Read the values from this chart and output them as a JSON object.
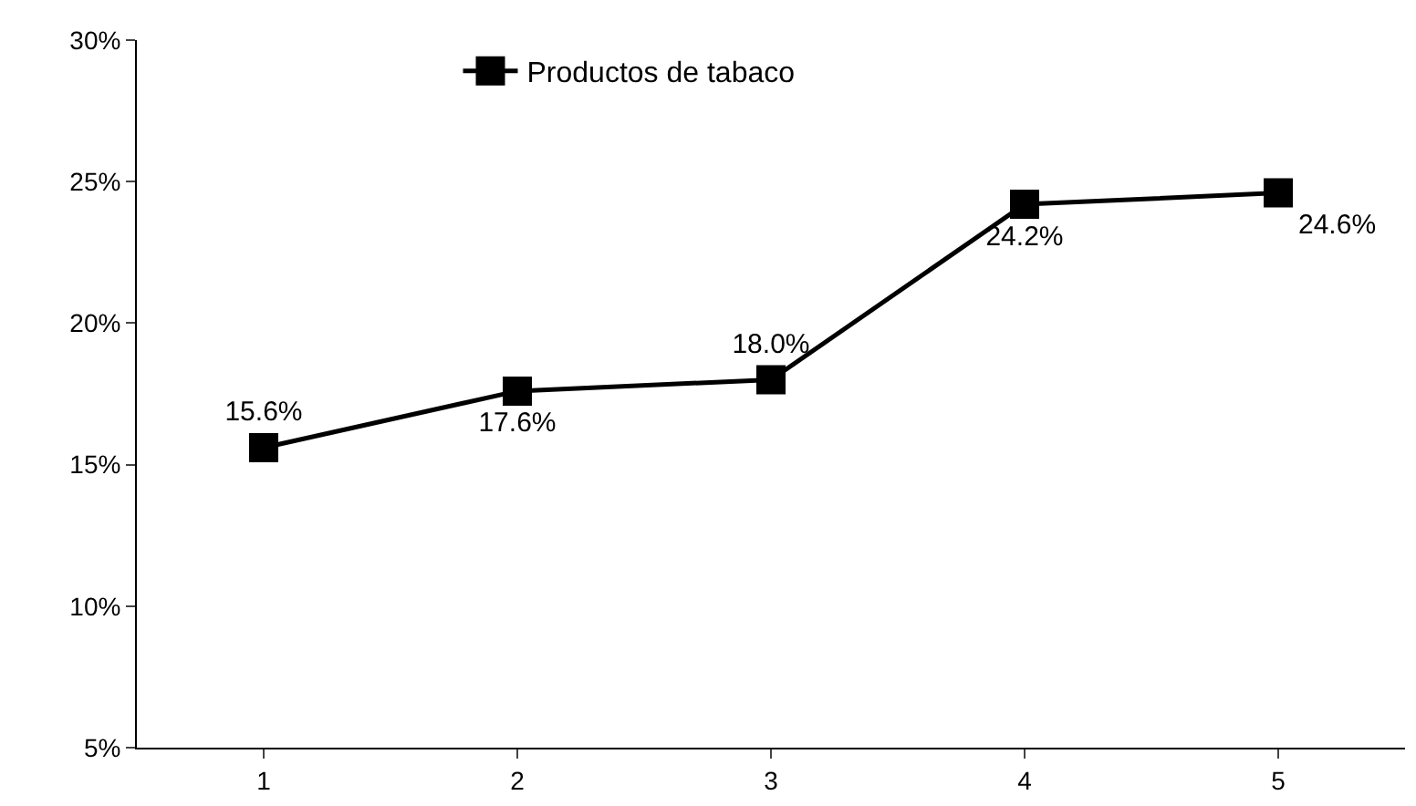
{
  "chart_data": {
    "type": "line",
    "categories": [
      "1",
      "2",
      "3",
      "4",
      "5"
    ],
    "series": [
      {
        "name": "Productos de tabaco",
        "color": "#000000",
        "values": [
          15.6,
          17.6,
          18.0,
          24.2,
          24.6
        ],
        "value_labels": [
          "15.6%",
          "17.6%",
          "18.0%",
          "24.2%",
          "24.6%"
        ]
      }
    ],
    "ylim": [
      5,
      30
    ],
    "yticks": [
      {
        "value": 5,
        "label": "5%"
      },
      {
        "value": 10,
        "label": "10%"
      },
      {
        "value": 15,
        "label": "15%"
      },
      {
        "value": 20,
        "label": "20%"
      },
      {
        "value": 25,
        "label": "25%"
      },
      {
        "value": 30,
        "label": "30%"
      }
    ],
    "grid": false,
    "legend": "top",
    "marker": "square",
    "line_style": "solid"
  }
}
